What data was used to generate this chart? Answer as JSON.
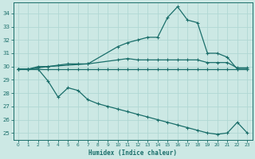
{
  "xlabel": "Humidex (Indice chaleur)",
  "bg_color": "#cce8e4",
  "grid_color": "#b0d8d4",
  "line_color": "#1a6e6a",
  "xlim": [
    -0.5,
    23.5
  ],
  "ylim": [
    24.5,
    34.8
  ],
  "yticks": [
    25,
    26,
    27,
    28,
    29,
    30,
    31,
    32,
    33,
    34
  ],
  "xticks": [
    0,
    1,
    2,
    3,
    4,
    5,
    6,
    7,
    8,
    9,
    10,
    11,
    12,
    13,
    14,
    15,
    16,
    17,
    18,
    19,
    20,
    21,
    22,
    23
  ],
  "line_flat_x": [
    0,
    1,
    2,
    3,
    4,
    5,
    6,
    7,
    8,
    9,
    10,
    11,
    12,
    13,
    14,
    15,
    16,
    17,
    18,
    19,
    20,
    21,
    22,
    23
  ],
  "line_flat_y": [
    29.8,
    29.8,
    29.8,
    29.8,
    29.8,
    29.8,
    29.8,
    29.8,
    29.8,
    29.8,
    29.8,
    29.8,
    29.8,
    29.8,
    29.8,
    29.8,
    29.8,
    29.8,
    29.8,
    29.8,
    29.8,
    29.8,
    29.8,
    29.8
  ],
  "line_upper_x": [
    0,
    1,
    2,
    3,
    7,
    10,
    11,
    12,
    13,
    14,
    15,
    16,
    17,
    18,
    19,
    20,
    21,
    22,
    23
  ],
  "line_upper_y": [
    29.8,
    29.8,
    29.9,
    30.0,
    30.2,
    31.5,
    31.8,
    32.0,
    32.2,
    32.2,
    33.7,
    34.5,
    33.5,
    33.3,
    31.0,
    31.0,
    30.7,
    29.8,
    29.8
  ],
  "line_mid_x": [
    0,
    1,
    2,
    3,
    4,
    5,
    6,
    7,
    10,
    11,
    12,
    13,
    14,
    15,
    16,
    17,
    18,
    19,
    20,
    21,
    22,
    23
  ],
  "line_mid_y": [
    29.8,
    29.8,
    30.0,
    30.0,
    30.1,
    30.2,
    30.2,
    30.2,
    30.5,
    30.6,
    30.5,
    30.5,
    30.5,
    30.5,
    30.5,
    30.5,
    30.5,
    30.3,
    30.3,
    30.3,
    29.9,
    29.9
  ],
  "line_low_x": [
    0,
    1,
    2,
    3,
    4,
    5,
    6,
    7,
    8,
    9,
    10,
    11,
    12,
    13,
    14,
    15,
    16,
    17,
    18,
    19,
    20,
    21,
    22,
    23
  ],
  "line_low_y": [
    29.8,
    29.8,
    29.8,
    28.9,
    27.7,
    28.4,
    28.2,
    27.5,
    27.2,
    27.0,
    26.8,
    26.6,
    26.4,
    26.2,
    26.0,
    25.8,
    25.6,
    25.4,
    25.2,
    25.0,
    24.9,
    25.0,
    25.8,
    25.0
  ]
}
